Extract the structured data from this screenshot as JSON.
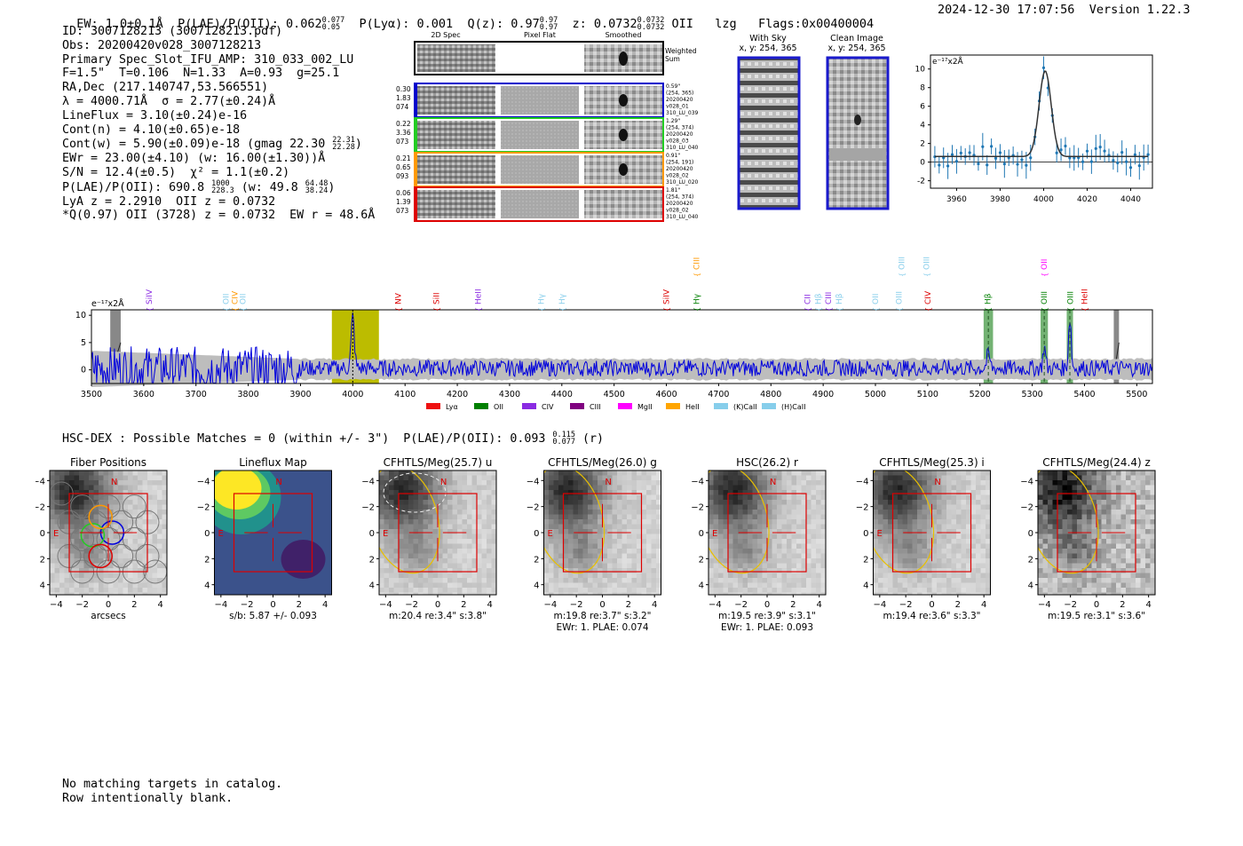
{
  "header": {
    "ew_label": "EW: 1.0±0.1Å",
    "plae_label": "P(LAE)/P(OII): 0.062",
    "plae_hi": "0.077",
    "plae_lo": "0.05",
    "plya_label": "P(Lyα): 0.001",
    "qz_label": "Q(z): 0.97",
    "qz_hi": "0.97",
    "qz_lo": "0.97",
    "z_label": "z: 0.0732",
    "z_hi": "0.0732",
    "z_lo": "0.0732",
    "z_line": "OII",
    "tag": "lzg",
    "flags": "Flags:0x00400004",
    "datetime": "2024-12-30 17:07:56",
    "version": "Version 1.22.3"
  },
  "info": {
    "id": "ID: 3007128213 (3007128213.pdf)",
    "obs": "Obs: 20200420v028_3007128213",
    "slot": "Primary Spec_Slot_IFU_AMP: 310_033_002_LU",
    "params": "F=1.5\"  T=0.106  N=1.33  A=0.93  g=25.1",
    "radec": "RA,Dec (217.140747,53.566551)",
    "lambda": "λ = 4000.71Å  σ = 2.77(±0.24)Å",
    "lineflux": "LineFlux = 3.10(±0.24)e-16",
    "cont_n": "Cont(n) = 4.10(±0.65)e-18",
    "cont_w": "Cont(w) = 5.90(±0.09)e-18 (gmag 22.30",
    "gmag_hi": "22.31",
    "gmag_lo": "22.28",
    "ewr": "EWr = 23.00(±4.10) (w: 16.00(±1.30))Å",
    "sn": "S/N = 12.4(±0.5)  χ² = 1.1(±0.2)",
    "plae": "P(LAE)/P(OII): 690.8",
    "plae_hi": "1000",
    "plae_lo": "228.3",
    "plae_w": "(w: 49.8",
    "plae_w_hi": "64.48",
    "plae_w_lo": "38.24",
    "lya": "LyA z = 2.2910  OII z = 0.0732",
    "q": "*Q(0.97) OII (3728) z = 0.0732  EW r = 48.6Å"
  },
  "cutouts": {
    "col_labels": [
      "2D Spec",
      "Pixel Flat",
      "Smoothed"
    ],
    "weighted_sum": "Weighted Sum",
    "rows": [
      {
        "left": [
          "0.30",
          "1.83",
          "074"
        ],
        "right": [
          "0.59\"",
          "(254, 365)",
          "20200420",
          "v028_01",
          "310_LU_039"
        ],
        "color": "#0000cc"
      },
      {
        "left": [
          "0.22",
          "3.36",
          "073"
        ],
        "right": [
          "1.29\"",
          "(254, 374)",
          "20200420",
          "v028_03",
          "310_LU_040"
        ],
        "color": "#22cc22"
      },
      {
        "left": [
          "0.21",
          "0.65",
          "093"
        ],
        "right": [
          "0.91\"",
          "(254, 191)",
          "20200420",
          "v028_02",
          "310_LU_020"
        ],
        "color": "#ff9900"
      },
      {
        "left": [
          "0.06",
          "1.39",
          "073"
        ],
        "right": [
          "1.81\"",
          "(254, 374)",
          "20200420",
          "v028_02",
          "310_LU_040"
        ],
        "color": "#dd0000"
      }
    ],
    "with_sky_title": "With Sky",
    "with_sky_sub": "x, y: 254, 365",
    "clean_title": "Clean Image",
    "clean_sub": "x, y: 254, 365"
  },
  "chart_data": [
    {
      "type": "line",
      "title": "",
      "ylabel": "e⁻¹⁷x2Å",
      "xlim": [
        3948,
        4050
      ],
      "ylim": [
        -2.8,
        11.5
      ],
      "xticks": [
        3960,
        3980,
        4000,
        4020,
        4040
      ],
      "yticks": [
        -2,
        0,
        2,
        4,
        6,
        8,
        10
      ],
      "center": 4000.7,
      "sigma": 2.77,
      "amp": 9.2,
      "baseline": 0.6
    },
    {
      "type": "line",
      "ylabel": "e⁻¹⁷x2Å",
      "xlim": [
        3500,
        5530
      ],
      "ylim": [
        -2.5,
        11
      ],
      "xticks": [
        3500,
        3600,
        3700,
        3800,
        3900,
        4000,
        4100,
        4200,
        4300,
        4400,
        4500,
        4600,
        4700,
        4800,
        4900,
        5000,
        5100,
        5200,
        5300,
        5400,
        5500
      ],
      "yticks": [
        0,
        5,
        10
      ],
      "highlight_band": [
        3960,
        4050
      ],
      "peak_at": 4000,
      "green_bands": [
        [
          5207,
          5225
        ],
        [
          5316,
          5330
        ],
        [
          5366,
          5378
        ]
      ],
      "gray_bands": [
        [
          3536,
          3556
        ],
        [
          5456,
          5466
        ]
      ],
      "lines": [
        {
          "label": "SiIV",
          "x": 3610,
          "color": "#8a2be2",
          "row": 0
        },
        {
          "label": "OII",
          "x": 3757,
          "color": "#87ceeb",
          "row": 0
        },
        {
          "label": "CIV",
          "x": 3774,
          "color": "#ff9900",
          "row": 0
        },
        {
          "label": "OII",
          "x": 3790,
          "color": "#87ceeb",
          "row": 0
        },
        {
          "label": "NV",
          "x": 4087,
          "color": "#dd0000",
          "row": 0
        },
        {
          "label": "SiII",
          "x": 4160,
          "color": "#dd0000",
          "row": 0
        },
        {
          "label": "HeII",
          "x": 4240,
          "color": "#8a2be2",
          "row": 0
        },
        {
          "label": "Hγ",
          "x": 4360,
          "color": "#87ceeb",
          "row": 0
        },
        {
          "label": "Hγ",
          "x": 4400,
          "color": "#87ceeb",
          "row": 0
        },
        {
          "label": "SiIV",
          "x": 4600,
          "color": "#dd0000",
          "row": 0
        },
        {
          "label": "CIII",
          "x": 4658,
          "color": "#ff9900",
          "row": 1
        },
        {
          "label": "Hγ",
          "x": 4658,
          "color": "#008000",
          "row": 0
        },
        {
          "label": "CII",
          "x": 4870,
          "color": "#8a2be2",
          "row": 0
        },
        {
          "label": "Hβ",
          "x": 4890,
          "color": "#87ceeb",
          "row": 0
        },
        {
          "label": "CIII",
          "x": 4910,
          "color": "#8a2be2",
          "row": 0
        },
        {
          "label": "Hβ",
          "x": 4930,
          "color": "#87ceeb",
          "row": 0
        },
        {
          "label": "OII",
          "x": 5000,
          "color": "#87ceeb",
          "row": 0
        },
        {
          "label": "OIII",
          "x": 5045,
          "color": "#87ceeb",
          "row": 0
        },
        {
          "label": "OIII",
          "x": 5050,
          "color": "#87ceeb",
          "row": 1
        },
        {
          "label": "CIV",
          "x": 5100,
          "color": "#dd0000",
          "row": 0
        },
        {
          "label": "OIII",
          "x": 5098,
          "color": "#87ceeb",
          "row": 1
        },
        {
          "label": "Hβ",
          "x": 5215,
          "color": "#008000",
          "row": 0
        },
        {
          "label": "OIII",
          "x": 5323,
          "color": "#008000",
          "row": 0
        },
        {
          "label": "OII",
          "x": 5323,
          "color": "#ff00ff",
          "row": 1
        },
        {
          "label": "OIII",
          "x": 5373,
          "color": "#008000",
          "row": 0
        },
        {
          "label": "HeII",
          "x": 5400,
          "color": "#dd0000",
          "row": 0
        }
      ],
      "legend": [
        {
          "label": "Lyα",
          "color": "#ee1111"
        },
        {
          "label": "OII",
          "color": "#008000"
        },
        {
          "label": "CIV",
          "color": "#8a2be2"
        },
        {
          "label": "CIII",
          "color": "#800080"
        },
        {
          "label": "MgII",
          "color": "#ff00ff"
        },
        {
          "label": "HeII",
          "color": "#ffa500"
        },
        {
          "label": "(K)CaII",
          "color": "#87ceeb"
        },
        {
          "label": "(H)CaII",
          "color": "#87ceeb"
        }
      ]
    }
  ],
  "hsc": {
    "text": "HSC-DEX : Possible Matches = 0 (within +/- 3\")  P(LAE)/P(OII): 0.093",
    "hi": "0.115",
    "lo": "0.077",
    "band": "(r)"
  },
  "panels": [
    {
      "title": "Fiber Positions",
      "caption1": "arcsecs",
      "caption2": "",
      "kind": "fiber"
    },
    {
      "title": "Lineflux Map",
      "caption1": "s/b: 5.87 +/- 0.093",
      "caption2": "",
      "kind": "flux"
    },
    {
      "title": "CFHTLS/Meg(25.7) u",
      "caption1": "m:20.4  re:3.4\"  s:3.8\"",
      "caption2": "",
      "kind": "img"
    },
    {
      "title": "CFHTLS/Meg(26.0) g",
      "caption1": "m:19.8  re:3.7\"  s:3.2\"",
      "caption2": "EWr: 1. PLAE: 0.074",
      "kind": "img"
    },
    {
      "title": "HSC(26.2) r",
      "caption1": "m:19.5  re:3.9\"  s:3.1\"",
      "caption2": "EWr: 1. PLAE: 0.093",
      "kind": "img"
    },
    {
      "title": "CFHTLS/Meg(25.3) i",
      "caption1": "m:19.4  re:3.6\"  s:3.3\"",
      "caption2": "",
      "kind": "img"
    },
    {
      "title": "CFHTLS/Meg(24.4) z",
      "caption1": "m:19.5  re:3.1\"  s:3.6\"",
      "caption2": "",
      "kind": "img"
    }
  ],
  "panel_axes": {
    "ticks": [
      "−4",
      "−2",
      "0",
      "2",
      "4"
    ],
    "north": "N",
    "east": "E"
  },
  "footer": {
    "line1": "No matching targets in catalog.",
    "line2": "Row intentionally blank."
  }
}
